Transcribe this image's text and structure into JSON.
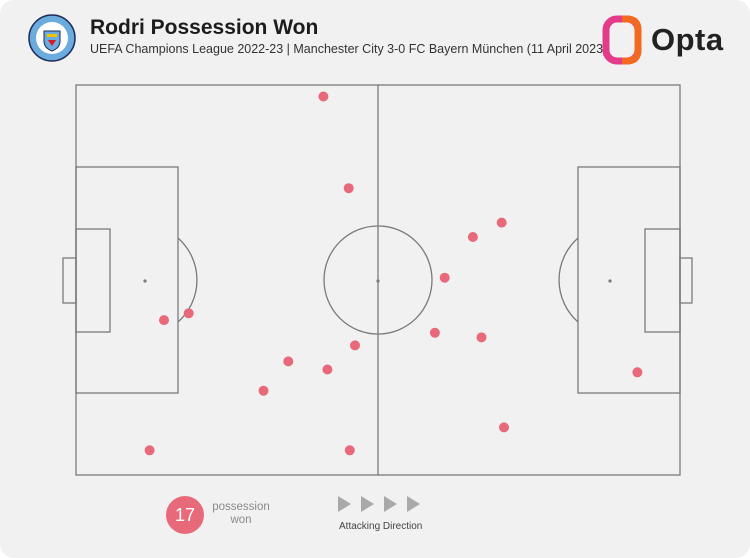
{
  "header": {
    "title": "Rodri Possession Won",
    "subtitle": "UEFA Champions League 2022-23 | Manchester City 3-0 FC Bayern München (11 April 2023)",
    "crest_icon": "manchester-city-crest-icon",
    "brand": "Opta",
    "brand_icon": "opta-logo-icon"
  },
  "colors": {
    "background": "#f1f1f1",
    "pitch_lines": "#7a7a7a",
    "marker": "#e8697a",
    "arrow": "#a9a9a9",
    "crest_blue": "#6cabdd",
    "crest_navy": "#1c2c5b",
    "opta_pink": "#e33b8a",
    "opta_orange": "#f26a21"
  },
  "legend": {
    "count": "17",
    "count_label": "possession won",
    "direction_label": "Attacking Direction",
    "direction_icon": "play-arrow-icon"
  },
  "chart_data": {
    "type": "scatter",
    "pitch_length": 105,
    "pitch_width": 68,
    "attacking_direction": "left-to-right",
    "xlim": [
      0,
      105
    ],
    "ylim": [
      0,
      68
    ],
    "points": [
      {
        "x": 43.0,
        "y": 66.0
      },
      {
        "x": 47.4,
        "y": 50.0
      },
      {
        "x": 69.0,
        "y": 41.5
      },
      {
        "x": 74.0,
        "y": 44.0
      },
      {
        "x": 64.1,
        "y": 34.4
      },
      {
        "x": 19.6,
        "y": 28.2
      },
      {
        "x": 15.3,
        "y": 27.0
      },
      {
        "x": 62.4,
        "y": 24.8
      },
      {
        "x": 70.5,
        "y": 24.0
      },
      {
        "x": 48.5,
        "y": 22.6
      },
      {
        "x": 36.9,
        "y": 19.8
      },
      {
        "x": 43.7,
        "y": 18.4
      },
      {
        "x": 32.6,
        "y": 14.7
      },
      {
        "x": 97.6,
        "y": 17.9
      },
      {
        "x": 74.4,
        "y": 8.3
      },
      {
        "x": 12.8,
        "y": 4.3
      },
      {
        "x": 47.6,
        "y": 4.3
      }
    ]
  }
}
